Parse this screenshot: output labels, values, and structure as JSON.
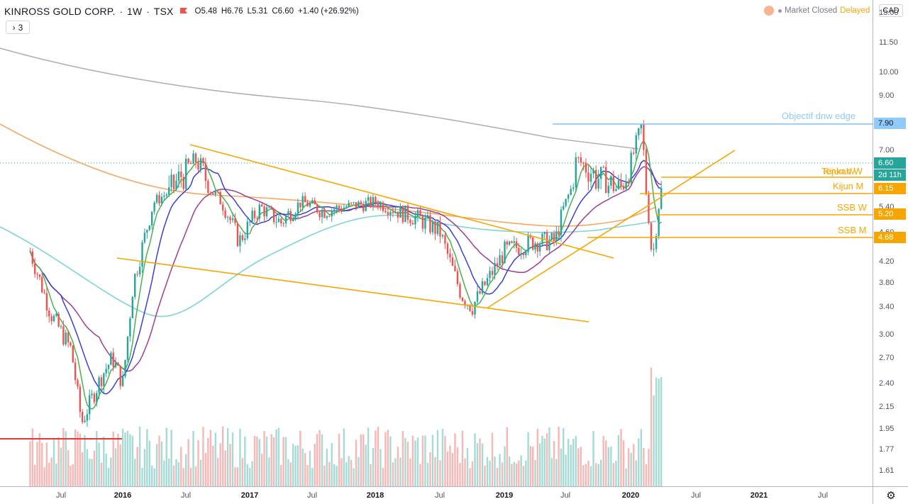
{
  "legend": {
    "symbol": "KINROSS GOLD CORP.",
    "interval": "1W",
    "exchange": "TSX",
    "open": "O5.48",
    "high": "H6.76",
    "low": "L5.31",
    "close": "C6.60",
    "change": "+1.40 (+26.92%)",
    "collapse": "3"
  },
  "status": {
    "closed": "Market Closed",
    "delayed": "Delayed"
  },
  "currency": "CAD",
  "price_ticks": [
    "13.00",
    "11.50",
    "10.00",
    "9.00",
    "7.00",
    "5.40",
    "4.60",
    "4.20",
    "3.80",
    "3.40",
    "3.00",
    "2.70",
    "2.40",
    "2.15",
    "1.95",
    "1.77",
    "1.61"
  ],
  "time_labels": [
    {
      "text": "Jul",
      "bold": false
    },
    {
      "text": "2016",
      "bold": true
    },
    {
      "text": "Jul",
      "bold": false
    },
    {
      "text": "2017",
      "bold": true
    },
    {
      "text": "Jul",
      "bold": false
    },
    {
      "text": "2018",
      "bold": true
    },
    {
      "text": "Jul",
      "bold": false
    },
    {
      "text": "2019",
      "bold": true
    },
    {
      "text": "Jul",
      "bold": false
    },
    {
      "text": "2020",
      "bold": true
    },
    {
      "text": "Jul",
      "bold": false
    },
    {
      "text": "2021",
      "bold": true
    },
    {
      "text": "Jul",
      "bold": false
    }
  ],
  "price_boxes": {
    "objectif": "7.90",
    "last": "6.60",
    "countdown": "2d 11h",
    "kijun_m": "6.15",
    "ssb_w": "5.20",
    "ssb_m": "4.68"
  },
  "level_labels": {
    "objectif": "Objectif dnw edge",
    "tenkan": "Tenkan W",
    "kijun_w": "Kijun W",
    "kijun_m": "Kijun M",
    "ssb_w": "SSB W",
    "ssb_m": "SSB M"
  },
  "colors": {
    "up": "#26a69a",
    "down": "#ef5350",
    "trend": "#f7a600",
    "objectif": "#64b5f6",
    "ma_gray": "#b2b0b0",
    "ma_orange": "#f5a860",
    "ma_cyan": "#7fd4d8",
    "ma_purple": "#9c3f92",
    "ma_blue": "#3b3fd1",
    "ma_green": "#4caf50",
    "last_bg": "#26a69a"
  },
  "chart_data": {
    "type": "candlestick",
    "symbol": "KINROSS GOLD CORP.",
    "interval": "1W",
    "last_bar": {
      "open": 5.48,
      "high": 6.76,
      "low": 5.31,
      "close": 6.6,
      "change": 1.4,
      "change_pct": 26.92
    },
    "horizontal_levels": [
      {
        "name": "Objectif dnw edge",
        "price": 7.9
      },
      {
        "name": "Tenkan W",
        "price": 6.3
      },
      {
        "name": "Kijun W",
        "price": 6.3
      },
      {
        "name": "Kijun M",
        "price": 6.15
      },
      {
        "name": "SSB W",
        "price": 5.2
      },
      {
        "name": "SSB M",
        "price": 4.68
      }
    ],
    "close_path": [
      [
        "2015-04",
        4.4
      ],
      [
        "2015-06",
        3.3
      ],
      [
        "2015-08",
        2.8
      ],
      [
        "2015-09",
        2.0
      ],
      [
        "2015-11",
        2.5
      ],
      [
        "2015-12",
        2.7
      ],
      [
        "2016-01",
        2.4
      ],
      [
        "2016-02",
        3.8
      ],
      [
        "2016-04",
        5.6
      ],
      [
        "2016-06",
        6.2
      ],
      [
        "2016-08",
        6.7
      ],
      [
        "2016-10",
        5.8
      ],
      [
        "2016-12",
        4.6
      ],
      [
        "2017-02",
        5.4
      ],
      [
        "2017-04",
        5.0
      ],
      [
        "2017-06",
        5.6
      ],
      [
        "2017-08",
        5.3
      ],
      [
        "2017-10",
        5.4
      ],
      [
        "2018-01",
        5.6
      ],
      [
        "2018-03",
        5.3
      ],
      [
        "2018-05",
        5.1
      ],
      [
        "2018-07",
        4.8
      ],
      [
        "2018-09",
        3.6
      ],
      [
        "2018-10",
        3.4
      ],
      [
        "2019-01",
        4.4
      ],
      [
        "2019-04",
        4.6
      ],
      [
        "2019-06",
        4.6
      ],
      [
        "2019-08",
        6.7
      ],
      [
        "2019-10",
        6.3
      ],
      [
        "2019-12",
        6.1
      ],
      [
        "2020-01",
        6.6
      ],
      [
        "2020-02",
        7.8
      ],
      [
        "2020-03",
        4.2
      ],
      [
        "2020-04",
        6.6
      ]
    ],
    "ylim": [
      1.5,
      13.0
    ]
  }
}
